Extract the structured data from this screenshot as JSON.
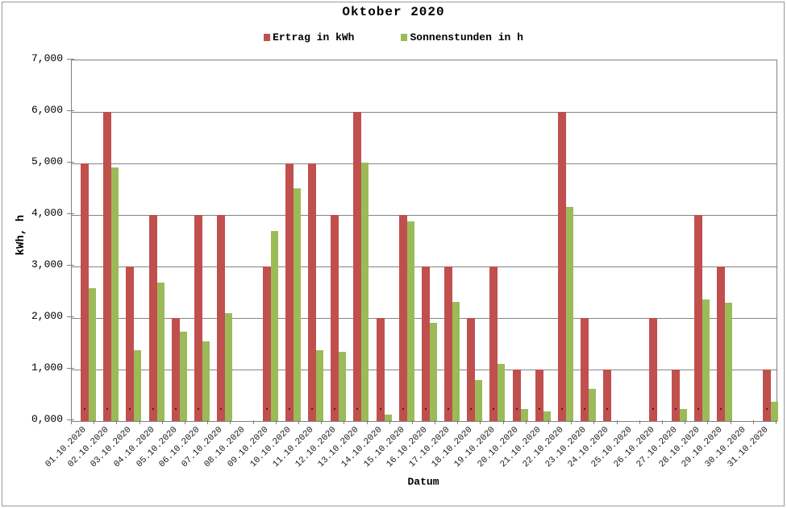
{
  "chart_data": {
    "type": "bar",
    "title": "Oktober 2020",
    "xlabel": "Datum",
    "ylabel": "kWh, h",
    "ylim": [
      0,
      7
    ],
    "ytick_labels": [
      "0,000",
      "1,000",
      "2,000",
      "3,000",
      "4,000",
      "5,000",
      "6,000",
      "7,000"
    ],
    "grid": "horizontal",
    "legend_position": "top-center",
    "categories": [
      "01.10.2020",
      "02.10.2020",
      "03.10.2020",
      "04.10.2020",
      "05.10.2020",
      "06.10.2020",
      "07.10.2020",
      "08.10.2020",
      "09.10.2020",
      "10.10.2020",
      "11.10.2020",
      "12.10.2020",
      "13.10.2020",
      "14.10.2020",
      "15.10.2020",
      "16.10.2020",
      "17.10.2020",
      "18.10.2020",
      "19.10.2020",
      "20.10.2020",
      "21.10.2020",
      "22.10.2020",
      "23.10.2020",
      "24.10.2020",
      "25.10.2020",
      "26.10.2020",
      "27.10.2020",
      "28.10.2020",
      "29.10.2020",
      "30.10.2020",
      "31.10.2020"
    ],
    "series": [
      {
        "name": "Ertrag in kWh",
        "color": "#C0504D",
        "values": [
          5.0,
          6.0,
          3.0,
          4.0,
          2.0,
          4.0,
          4.0,
          0,
          3.0,
          5.0,
          5.0,
          4.0,
          6.0,
          2.0,
          4.0,
          3.0,
          3.0,
          2.0,
          3.0,
          1.0,
          1.0,
          6.0,
          2.0,
          1.0,
          0,
          2.0,
          1.0,
          4.0,
          3.0,
          0,
          1.0
        ]
      },
      {
        "name": "Sonnenstunden in h",
        "color": "#9BBB59",
        "values": [
          2.58,
          4.92,
          1.38,
          2.68,
          1.74,
          1.55,
          2.1,
          0,
          3.69,
          4.52,
          1.38,
          1.34,
          5.02,
          0.13,
          3.87,
          1.9,
          2.32,
          0.79,
          1.11,
          0.23,
          0.18,
          4.15,
          0.63,
          0,
          0,
          0,
          0.23,
          2.36,
          2.29,
          0,
          0.38
        ]
      }
    ]
  },
  "colors": {
    "grid": "#848484",
    "axis": "#808080",
    "frame": "#9a9a9a",
    "bar_red": "#C0504D",
    "bar_green": "#9BBB59"
  }
}
